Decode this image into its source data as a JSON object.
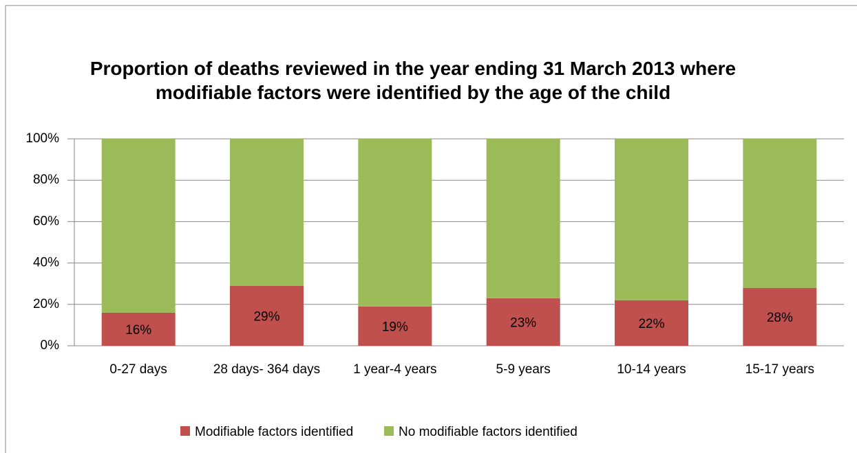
{
  "chart_data": {
    "type": "stacked_bar",
    "title": "Proportion of deaths reviewed in the year ending 31 March 2013 where modifiable factors were identified by the age of the child",
    "categories": [
      "0-27 days",
      "28 days- 364 days",
      "1 year-4 years",
      "5-9 years",
      "10-14 years",
      "15-17 years"
    ],
    "series": [
      {
        "name": "Modifiable factors identified",
        "color": "#c0504d",
        "values": [
          16,
          29,
          19,
          23,
          22,
          28
        ],
        "value_labels": [
          "16%",
          "29%",
          "19%",
          "23%",
          "22%",
          "28%"
        ]
      },
      {
        "name": "No modifiable factors identified",
        "color": "#9bbb59",
        "values": [
          84,
          71,
          81,
          77,
          78,
          72
        ]
      }
    ],
    "ylim": [
      0,
      100
    ],
    "yticks": [
      {
        "value": 0,
        "label": "0%"
      },
      {
        "value": 20,
        "label": "20%"
      },
      {
        "value": 40,
        "label": "40%"
      },
      {
        "value": 60,
        "label": "60%"
      },
      {
        "value": 80,
        "label": "80%"
      },
      {
        "value": 100,
        "label": "100%"
      }
    ],
    "grid": true,
    "legend": "bottom"
  }
}
